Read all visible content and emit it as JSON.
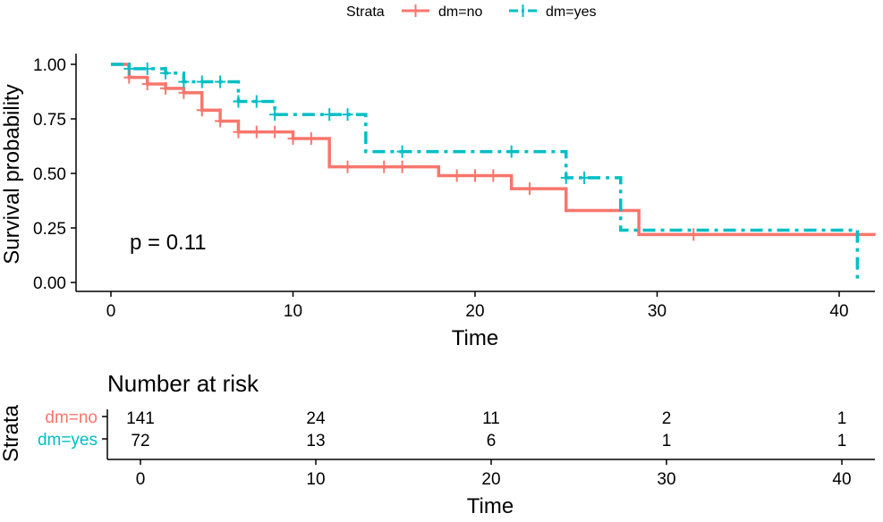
{
  "legend": {
    "title": "Strata",
    "items": [
      {
        "label": "dm=no",
        "color": "#F8766D"
      },
      {
        "label": "dm=yes",
        "color": "#00BFC4"
      }
    ]
  },
  "chart_data": [
    {
      "type": "line",
      "title": "",
      "xlabel": "Time",
      "ylabel": "Survival probability",
      "xlim": [
        0,
        42
      ],
      "ylim": [
        0,
        1
      ],
      "x_ticks": [
        "0",
        "10",
        "20",
        "30",
        "40"
      ],
      "y_ticks": [
        "0.00",
        "0.25",
        "0.50",
        "0.75",
        "1.00"
      ],
      "grid": false,
      "legend_position": "top",
      "annotation": "p = 0.11",
      "series": [
        {
          "name": "dm=no",
          "color": "#F8766D",
          "style": "solid",
          "steps": [
            [
              0,
              1.0
            ],
            [
              1,
              0.94
            ],
            [
              2,
              0.91
            ],
            [
              3,
              0.89
            ],
            [
              4,
              0.87
            ],
            [
              5,
              0.79
            ],
            [
              6,
              0.74
            ],
            [
              7,
              0.69
            ],
            [
              10,
              0.66
            ],
            [
              12,
              0.53
            ],
            [
              18,
              0.49
            ],
            [
              22,
              0.43
            ],
            [
              25,
              0.33
            ],
            [
              29,
              0.22
            ],
            [
              42,
              0.22
            ]
          ],
          "censored": [
            [
              1,
              0.94
            ],
            [
              2,
              0.91
            ],
            [
              3,
              0.89
            ],
            [
              4,
              0.87
            ],
            [
              5,
              0.79
            ],
            [
              6,
              0.74
            ],
            [
              7,
              0.69
            ],
            [
              8,
              0.69
            ],
            [
              9,
              0.69
            ],
            [
              10,
              0.66
            ],
            [
              11,
              0.66
            ],
            [
              13,
              0.53
            ],
            [
              15,
              0.53
            ],
            [
              16,
              0.53
            ],
            [
              19,
              0.49
            ],
            [
              20,
              0.49
            ],
            [
              21,
              0.49
            ],
            [
              23,
              0.43
            ],
            [
              32,
              0.22
            ]
          ]
        },
        {
          "name": "dm=yes",
          "color": "#00BFC4",
          "style": "dashdot",
          "steps": [
            [
              0,
              1.0
            ],
            [
              1,
              0.98
            ],
            [
              3,
              0.96
            ],
            [
              4,
              0.92
            ],
            [
              7,
              0.83
            ],
            [
              9,
              0.77
            ],
            [
              14,
              0.6
            ],
            [
              25,
              0.48
            ],
            [
              28,
              0.24
            ],
            [
              41,
              0.0
            ]
          ],
          "censored": [
            [
              1,
              0.98
            ],
            [
              2,
              0.98
            ],
            [
              3,
              0.96
            ],
            [
              4,
              0.92
            ],
            [
              5,
              0.92
            ],
            [
              6,
              0.92
            ],
            [
              7,
              0.83
            ],
            [
              8,
              0.83
            ],
            [
              9,
              0.77
            ],
            [
              12,
              0.77
            ],
            [
              13,
              0.77
            ],
            [
              16,
              0.6
            ],
            [
              22,
              0.6
            ],
            [
              25,
              0.48
            ],
            [
              26,
              0.48
            ]
          ]
        }
      ]
    },
    {
      "type": "table",
      "title": "Number at risk",
      "xlabel": "Time",
      "ylabel": "Strata",
      "x": [
        0,
        10,
        20,
        30,
        40
      ],
      "x_ticks": [
        "0",
        "10",
        "20",
        "30",
        "40"
      ],
      "rows": [
        {
          "name": "dm=no",
          "color": "#F8766D",
          "values": [
            141,
            24,
            11,
            2,
            1
          ]
        },
        {
          "name": "dm=yes",
          "color": "#00BFC4",
          "values": [
            72,
            13,
            6,
            1,
            1
          ]
        }
      ]
    }
  ]
}
